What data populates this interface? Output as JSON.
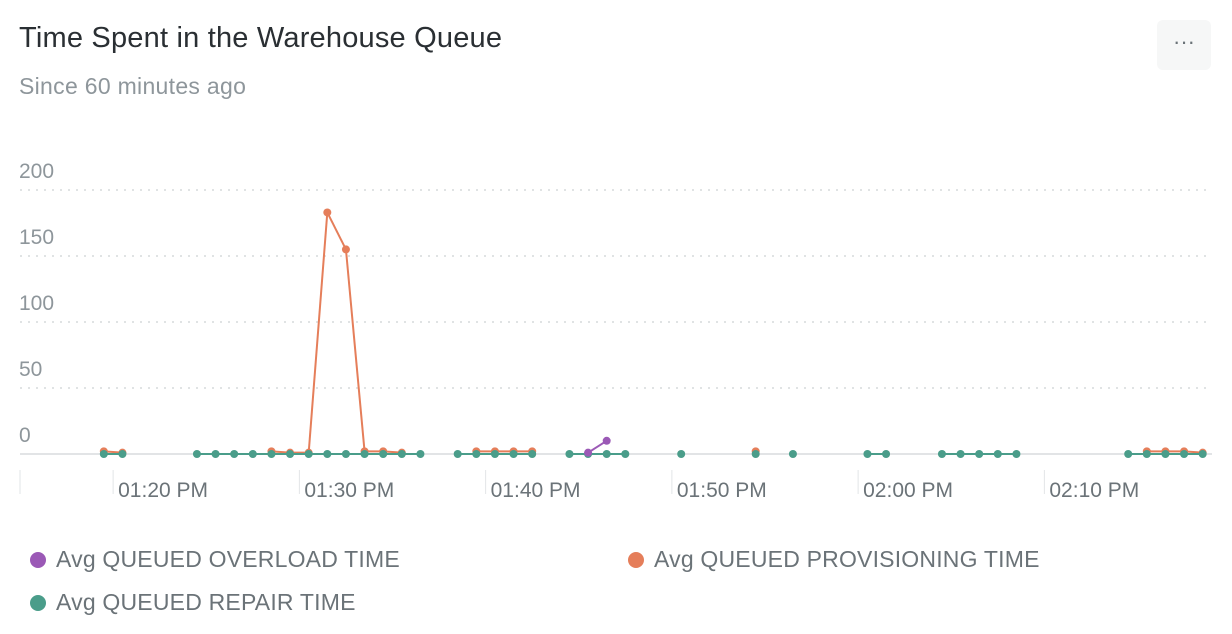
{
  "header": {
    "title": "Time Spent in the Warehouse Queue",
    "subtitle": "Since 60 minutes ago",
    "menu_label": "···"
  },
  "chart_data": {
    "type": "line",
    "title": "Time Spent in the Warehouse Queue",
    "subtitle": "Since 60 minutes ago",
    "xlabel": "",
    "ylabel": "",
    "ylim": [
      0,
      200
    ],
    "y_ticks": [
      0,
      50,
      100,
      150,
      200
    ],
    "x_tick_labels": [
      "01:20 PM",
      "01:30 PM",
      "01:40 PM",
      "01:50 PM",
      "02:00 PM",
      "02:10 PM"
    ],
    "x_tick_minutes": [
      80,
      90,
      100,
      110,
      120,
      130
    ],
    "x_range_minutes": [
      75,
      139
    ],
    "grid": true,
    "legend_position": "bottom",
    "series": [
      {
        "name": "Avg QUEUED OVERLOAD TIME",
        "color": "#9b59b6",
        "points": [
          [
            105.5,
            1
          ],
          [
            106.5,
            10
          ]
        ]
      },
      {
        "name": "Avg QUEUED PROVISIONING TIME",
        "color": "#e57e5a",
        "points": [
          [
            79.5,
            2
          ],
          [
            80.5,
            1
          ],
          [
            88.5,
            2
          ],
          [
            89.5,
            1
          ],
          [
            90.5,
            1
          ],
          [
            91.5,
            183
          ],
          [
            92.5,
            155
          ],
          [
            93.5,
            2
          ],
          [
            94.5,
            2
          ],
          [
            95.5,
            1
          ],
          [
            99.5,
            2
          ],
          [
            100.5,
            2
          ],
          [
            101.5,
            2
          ],
          [
            102.5,
            2
          ],
          [
            114.5,
            2
          ],
          [
            135.5,
            2
          ],
          [
            136.5,
            2
          ],
          [
            137.5,
            2
          ],
          [
            138.5,
            1
          ]
        ]
      },
      {
        "name": "Avg QUEUED REPAIR TIME",
        "color": "#4a9d8a",
        "points": [
          [
            79.5,
            0
          ],
          [
            80.5,
            0
          ],
          [
            84.5,
            0
          ],
          [
            85.5,
            0
          ],
          [
            86.5,
            0
          ],
          [
            87.5,
            0
          ],
          [
            88.5,
            0
          ],
          [
            89.5,
            0
          ],
          [
            90.5,
            0
          ],
          [
            91.5,
            0
          ],
          [
            92.5,
            0
          ],
          [
            93.5,
            0
          ],
          [
            94.5,
            0
          ],
          [
            95.5,
            0
          ],
          [
            96.5,
            0
          ],
          [
            98.5,
            0
          ],
          [
            99.5,
            0
          ],
          [
            100.5,
            0
          ],
          [
            101.5,
            0
          ],
          [
            102.5,
            0
          ],
          [
            104.5,
            0
          ],
          [
            105.5,
            0
          ],
          [
            106.5,
            0
          ],
          [
            107.5,
            0
          ],
          [
            110.5,
            0
          ],
          [
            114.5,
            0
          ],
          [
            116.5,
            0
          ],
          [
            120.5,
            0
          ],
          [
            121.5,
            0
          ],
          [
            124.5,
            0
          ],
          [
            125.5,
            0
          ],
          [
            126.5,
            0
          ],
          [
            127.5,
            0
          ],
          [
            128.5,
            0
          ],
          [
            134.5,
            0
          ],
          [
            135.5,
            0
          ],
          [
            136.5,
            0
          ],
          [
            137.5,
            0
          ],
          [
            138.5,
            0
          ]
        ]
      }
    ]
  }
}
